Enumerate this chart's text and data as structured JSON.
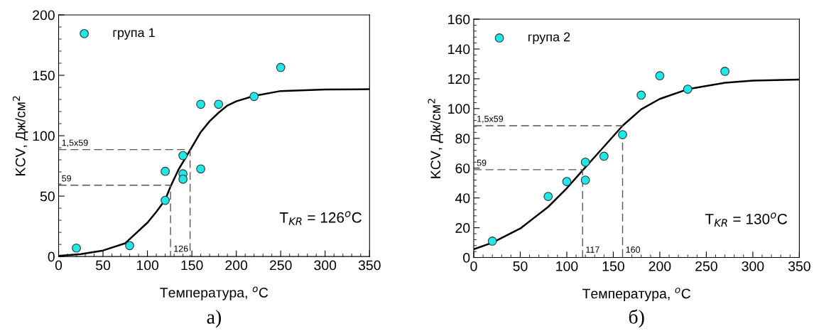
{
  "chart_data": [
    {
      "type": "scatter",
      "title": "а)",
      "xlabel": "Температура, $^{o}$C",
      "ylabel": "KCV, Дж/см$^{2}$",
      "xlim": [
        0,
        350
      ],
      "xticks": [
        0,
        50,
        100,
        150,
        200,
        250,
        300,
        350
      ],
      "ylim": [
        0,
        200
      ],
      "yticks": [
        0,
        50,
        100,
        150,
        200
      ],
      "legend": "top left",
      "grid": false,
      "annotations": [
        "T$_{KR}$ = 126$^{o}$C",
        {
          "text": "59",
          "x": 0,
          "y": 59
        },
        {
          "text": "1,5x59",
          "x": 0,
          "y": 88.5
        },
        {
          "text": "126",
          "x": 126,
          "y": 0
        }
      ],
      "series": [
        {
          "name": "група 1",
          "marker": "circle",
          "color": "#1ee8e8",
          "x": [
            20,
            80,
            120,
            120,
            140,
            140,
            140,
            160,
            160,
            180,
            220,
            250
          ],
          "values": [
            7,
            9,
            70.5,
            46.5,
            83.5,
            68.5,
            64,
            126,
            72.5,
            126,
            132.5,
            156.5
          ]
        },
        {
          "type": "line",
          "marker": "none",
          "color": "#000000",
          "line_style": "solid",
          "x": [
            0,
            25,
            50,
            75,
            100,
            110,
            120,
            126,
            135,
            148,
            160,
            170,
            180,
            190,
            200,
            220,
            250,
            300,
            350
          ],
          "values": [
            0.5,
            2,
            5,
            11,
            28,
            37,
            47,
            58,
            72,
            88,
            103,
            112,
            119,
            125,
            128.5,
            133,
            137,
            138.3,
            138.5
          ]
        },
        {
          "type": "line",
          "marker": "none",
          "color": "#555555",
          "line_style": "dashed",
          "x": [
            0,
            126,
            126
          ],
          "values": [
            59,
            59,
            0
          ]
        },
        {
          "type": "line",
          "marker": "none",
          "color": "#555555",
          "line_style": "dashed",
          "x": [
            0,
            148,
            148
          ],
          "values": [
            88.5,
            88.5,
            0
          ]
        }
      ]
    },
    {
      "type": "scatter",
      "title": "б)",
      "xlabel": "Температура, $^{o}$C",
      "ylabel": "KCV, Дж/см$^{2}$",
      "xlim": [
        0,
        350
      ],
      "xticks": [
        0,
        50,
        100,
        150,
        200,
        250,
        300,
        350
      ],
      "ylim": [
        0,
        160
      ],
      "yticks": [
        0,
        20,
        40,
        60,
        80,
        100,
        120,
        140,
        160
      ],
      "legend": "top left",
      "grid": false,
      "annotations": [
        "T$_{KR}$ = 130$^{o}$C",
        {
          "text": "59",
          "x": 0,
          "y": 59
        },
        {
          "text": "1,5x59",
          "x": 0,
          "y": 88.5
        },
        {
          "text": "117",
          "x": 117,
          "y": 0
        },
        {
          "text": "160",
          "x": 160,
          "y": 0
        }
      ],
      "series": [
        {
          "name": "група 2",
          "marker": "circle",
          "color": "#1ee8e8",
          "x": [
            20,
            80,
            100,
            120,
            120,
            140,
            160,
            180,
            200,
            230,
            270
          ],
          "values": [
            11,
            41,
            51,
            64,
            52,
            68,
            82.5,
            109,
            122,
            113,
            125
          ]
        },
        {
          "type": "line",
          "marker": "none",
          "color": "#000000",
          "line_style": "solid",
          "x": [
            0,
            20,
            50,
            80,
            100,
            117,
            130,
            145,
            160,
            180,
            200,
            230,
            270,
            300,
            350
          ],
          "values": [
            5.5,
            10,
            19.5,
            34,
            46.5,
            58.5,
            67.5,
            78,
            88.5,
            99.5,
            106.5,
            113,
            117.3,
            118.8,
            119.5
          ]
        },
        {
          "type": "line",
          "marker": "none",
          "color": "#555555",
          "line_style": "dashed",
          "x": [
            0,
            117,
            117
          ],
          "values": [
            59,
            59,
            0
          ]
        },
        {
          "type": "line",
          "marker": "none",
          "color": "#555555",
          "line_style": "dashed",
          "x": [
            0,
            160,
            160
          ],
          "values": [
            88.5,
            88.5,
            0
          ]
        }
      ]
    }
  ]
}
